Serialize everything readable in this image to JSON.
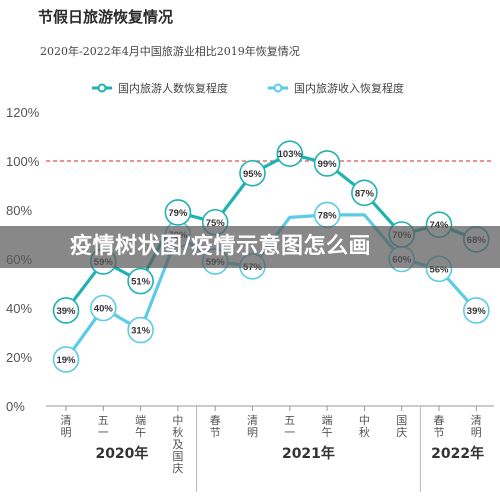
{
  "title": "节假日旅游恢复情况",
  "subtitle": "2020年-2022年4月中国旅游业相比2019年恢复情况",
  "banner": "疫情树状图/疫情示意图怎么画",
  "colors": {
    "series1": "#20b2b2",
    "series2": "#5ccbe5",
    "reference": "#e05050",
    "axis": "#999999",
    "text": "#444444"
  },
  "chart_data": {
    "type": "line",
    "categories": [
      "清明",
      "五一",
      "端午",
      "中秋及国庆",
      "春节",
      "清明",
      "五一",
      "端午",
      "中秋",
      "国庆",
      "春节",
      "清明"
    ],
    "category_years": [
      "2020年",
      "2020年",
      "2020年",
      "2020年",
      "2021年",
      "2021年",
      "2021年",
      "2021年",
      "2021年",
      "2021年",
      "2022年",
      "2022年"
    ],
    "year_groups": [
      {
        "label": "2020年",
        "start": 0,
        "end": 3
      },
      {
        "label": "2021年",
        "start": 4,
        "end": 9
      },
      {
        "label": "2022年",
        "start": 10,
        "end": 11
      }
    ],
    "series": [
      {
        "name": "国内旅游人数恢复程度",
        "values": [
          39,
          59,
          51,
          79,
          75,
          95,
          103,
          99,
          87,
          70,
          74,
          68
        ],
        "labels": [
          "39%",
          "59%",
          "51%",
          "79%",
          "75%",
          "95%",
          "103%",
          "99%",
          "87%",
          "70%",
          "74%",
          "68%"
        ]
      },
      {
        "name": "国内旅游收入恢复程度",
        "values": [
          19,
          40,
          31,
          70,
          59,
          57,
          77,
          78,
          78,
          60,
          56,
          39
        ],
        "labels": [
          "19%",
          "40%",
          "31%",
          "70%",
          "59%",
          "57%",
          "",
          "78%",
          "",
          "60%",
          "56%",
          "39%"
        ]
      }
    ],
    "y_ticks": [
      "0%",
      "20%",
      "40%",
      "60%",
      "80%",
      "100%",
      "120%"
    ],
    "ylim": [
      0,
      120
    ],
    "reference_line": 100,
    "legend_position": "top"
  }
}
